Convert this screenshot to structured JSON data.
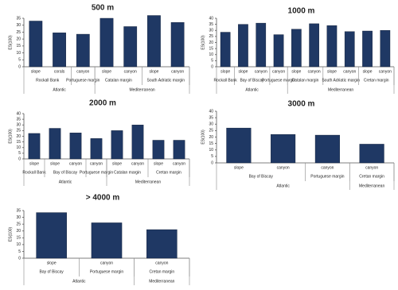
{
  "chart_data": [
    {
      "type": "bar",
      "title": "500 m",
      "y_label": "ES(100)",
      "color": "#1f3864",
      "ylim": [
        0,
        35
      ],
      "yticks": [
        0,
        5,
        10,
        15,
        20,
        25,
        30,
        35
      ],
      "regions": [
        {
          "name": "Atlantic",
          "sites": [
            {
              "name": "Rockall Bank",
              "categories": [
                "slope",
                "corals"
              ],
              "values": [
                33,
                24.5
              ]
            },
            {
              "name": "Portuguese margin",
              "categories": [
                "canyon"
              ],
              "values": [
                23.5
              ]
            }
          ]
        },
        {
          "name": "Mediterranean",
          "sites": [
            {
              "name": "Catalan margin",
              "categories": [
                "slope",
                "canyon"
              ],
              "values": [
                35,
                29
              ]
            },
            {
              "name": "South Adriatic margin",
              "categories": [
                "slope",
                "canyon"
              ],
              "values": [
                37,
                32
              ]
            }
          ]
        }
      ]
    },
    {
      "type": "bar",
      "title": "1000 m",
      "y_label": "ES(100)",
      "color": "#1f3864",
      "ylim": [
        0,
        40
      ],
      "yticks": [
        0,
        5,
        10,
        15,
        20,
        25,
        30,
        35,
        40
      ],
      "regions": [
        {
          "name": "Atlantic",
          "sites": [
            {
              "name": "Rockall Bank",
              "categories": [
                "slope"
              ],
              "values": [
                28.5
              ]
            },
            {
              "name": "Bay of Biscay",
              "categories": [
                "slope",
                "canyon"
              ],
              "values": [
                35,
                36
              ]
            },
            {
              "name": "Portuguese margin",
              "categories": [
                "canyon"
              ],
              "values": [
                26.5
              ]
            }
          ]
        },
        {
          "name": "Mediterranean",
          "sites": [
            {
              "name": "Catalan margin",
              "categories": [
                "slope",
                "canyon"
              ],
              "values": [
                31,
                35.5
              ]
            },
            {
              "name": "South Adriatic margin",
              "categories": [
                "slope",
                "canyon"
              ],
              "values": [
                34,
                29
              ]
            },
            {
              "name": "Cretan margin",
              "categories": [
                "slope",
                "canyon"
              ],
              "values": [
                29.5,
                30
              ]
            }
          ]
        }
      ]
    },
    {
      "type": "bar",
      "title": "2000 m",
      "y_label": "ES(100)",
      "color": "#1f3864",
      "ylim": [
        0,
        40
      ],
      "yticks": [
        0,
        5,
        10,
        15,
        20,
        25,
        30,
        35,
        40
      ],
      "regions": [
        {
          "name": "Atlantic",
          "sites": [
            {
              "name": "Rockall Bank",
              "categories": [
                "slope"
              ],
              "values": [
                22.5
              ]
            },
            {
              "name": "Bay of Biscay",
              "categories": [
                "slope",
                "canyon"
              ],
              "values": [
                27,
                23
              ]
            },
            {
              "name": "Portuguese margin",
              "categories": [
                "canyon"
              ],
              "values": [
                18
              ]
            }
          ]
        },
        {
          "name": "Mediterranean",
          "sites": [
            {
              "name": "Catalan margin",
              "categories": [
                "slope",
                "canyon"
              ],
              "values": [
                25,
                30
              ]
            },
            {
              "name": "Cretan margin",
              "categories": [
                "slope",
                "canyon"
              ],
              "values": [
                16.5,
                16.5
              ]
            }
          ]
        }
      ]
    },
    {
      "type": "bar",
      "title": "3000 m",
      "y_label": "ES(100)",
      "color": "#1f3864",
      "ylim": [
        0,
        40
      ],
      "yticks": [
        0,
        5,
        10,
        15,
        20,
        25,
        30,
        35,
        40
      ],
      "regions": [
        {
          "name": "Atlantic",
          "sites": [
            {
              "name": "Bay of Biscay",
              "categories": [
                "slope",
                "canyon"
              ],
              "values": [
                27,
                22
              ]
            },
            {
              "name": "Portuguese margin",
              "categories": [
                "canyon"
              ],
              "values": [
                21.5
              ]
            }
          ]
        },
        {
          "name": "Mediterranean",
          "sites": [
            {
              "name": "Cretan margin",
              "categories": [
                "canyon"
              ],
              "values": [
                14.5
              ]
            }
          ]
        }
      ]
    },
    {
      "type": "bar",
      "title": "> 4000 m",
      "y_label": "ES(100)",
      "color": "#1f3864",
      "ylim": [
        0,
        35
      ],
      "yticks": [
        0,
        5,
        10,
        15,
        20,
        25,
        30,
        35
      ],
      "regions": [
        {
          "name": "Atlantic",
          "sites": [
            {
              "name": "Bay of Biscay",
              "categories": [
                "slope"
              ],
              "values": [
                33.5
              ]
            },
            {
              "name": "Portuguese margin",
              "categories": [
                "canyon"
              ],
              "values": [
                26
              ]
            }
          ]
        },
        {
          "name": "Mediterranean",
          "sites": [
            {
              "name": "Cretan margin",
              "categories": [
                "canyon"
              ],
              "values": [
                21
              ]
            }
          ]
        }
      ]
    }
  ]
}
